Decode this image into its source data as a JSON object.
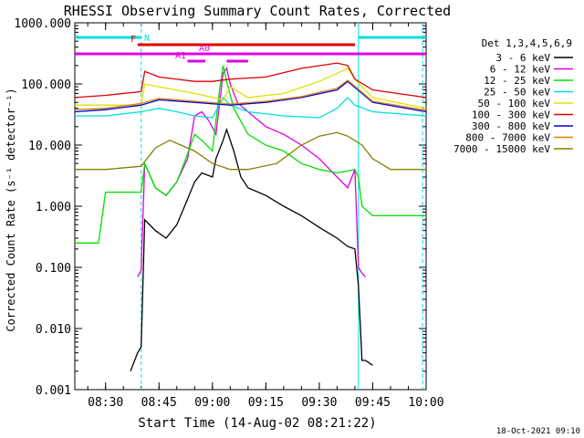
{
  "chart_data": {
    "type": "line",
    "title": "RHESSI Observing Summary Count Rates, Corrected",
    "xlabel": "Start Time (14-Aug-02 08:21:22)",
    "ylabel": "Corrected Count Rate (s⁻¹ detector⁻¹)",
    "y_scale": "log",
    "ylim": [
      0.001,
      1000
    ],
    "xlim": [
      "08:21:22",
      "10:00:00"
    ],
    "x_ticks": [
      "08:30",
      "08:45",
      "09:00",
      "09:15",
      "09:30",
      "09:45",
      "10:00"
    ],
    "y_ticks": [
      "1000.000",
      "100.000",
      "10.000",
      "1.000",
      "0.100",
      "0.010",
      "0.001"
    ],
    "grid": false,
    "legend_title": "Det 1,3,4,5,6,9",
    "legend_position": "right",
    "footer": "18-Oct-2021 09:10",
    "flags": [
      {
        "label": "N",
        "color": "#00e0e0",
        "segments": [
          [
            "08:21:22",
            "08:40"
          ],
          [
            "09:41",
            "10:00"
          ]
        ]
      },
      {
        "label": "F",
        "color": "#e00000",
        "segments": [
          [
            "08:39",
            "09:40"
          ]
        ]
      },
      {
        "label": "A0",
        "color": "#e000e0",
        "segments": [
          [
            "08:21:22",
            "10:00"
          ]
        ]
      },
      {
        "label": "A1",
        "color": "#e000e0",
        "segments": [
          [
            "08:53",
            "08:58"
          ],
          [
            "09:04",
            "09:10"
          ]
        ]
      }
    ],
    "vlines": [
      {
        "time": "08:40",
        "color": "#00e0e0",
        "style": "dashed"
      },
      {
        "time": "09:41",
        "color": "#00e0e0",
        "style": "solid"
      },
      {
        "time": "09:59",
        "color": "#00e0e0",
        "style": "dashed"
      }
    ],
    "series": [
      {
        "name": "3 - 6 keV",
        "color": "#000000",
        "x": [
          "08:37",
          "08:39",
          "08:40",
          "08:41",
          "08:44",
          "08:47",
          "08:50",
          "08:53",
          "08:55",
          "08:57",
          "09:00",
          "09:01",
          "09:03",
          "09:04",
          "09:06",
          "09:08",
          "09:10",
          "09:15",
          "09:20",
          "09:25",
          "09:30",
          "09:35",
          "09:38",
          "09:40",
          "09:41",
          "09:42",
          "09:43",
          "09:45"
        ],
        "y": [
          0.002,
          0.004,
          0.005,
          0.6,
          0.4,
          0.3,
          0.5,
          1.3,
          2.5,
          3.5,
          3,
          6,
          12,
          18,
          8,
          3,
          2,
          1.5,
          1,
          0.7,
          0.45,
          0.3,
          0.22,
          0.2,
          0.05,
          0.003,
          0.003,
          0.0025
        ]
      },
      {
        "name": "6 - 12 keV",
        "color": "#e000e0",
        "x": [
          "08:39",
          "08:40",
          "08:41",
          "08:44",
          "08:47",
          "08:50",
          "08:53",
          "08:55",
          "08:57",
          "08:59",
          "09:01",
          "09:03",
          "09:04",
          "09:05",
          "09:07",
          "09:10",
          "09:15",
          "09:20",
          "09:25",
          "09:30",
          "09:35",
          "09:38",
          "09:40",
          "09:41",
          "09:42",
          "09:43"
        ],
        "y": [
          0.07,
          0.09,
          5,
          2,
          1.5,
          2.5,
          6,
          30,
          35,
          25,
          15,
          150,
          180,
          100,
          50,
          35,
          20,
          15,
          10,
          6,
          3,
          2,
          4,
          0.1,
          0.08,
          0.07
        ]
      },
      {
        "name": "12 - 25 keV",
        "color": "#00e000",
        "x": [
          "08:21:22",
          "08:28",
          "08:30",
          "08:40",
          "08:41",
          "08:44",
          "08:47",
          "08:50",
          "08:52",
          "08:55",
          "08:57",
          "09:00",
          "09:02",
          "09:03",
          "09:04",
          "09:06",
          "09:10",
          "09:15",
          "09:20",
          "09:25",
          "09:30",
          "09:35",
          "09:40",
          "09:41",
          "09:42",
          "09:45",
          "09:50",
          "10:00"
        ],
        "y": [
          0.25,
          0.25,
          1.7,
          1.7,
          5,
          2,
          1.5,
          2.5,
          5,
          15,
          12,
          8,
          80,
          200,
          110,
          40,
          15,
          10,
          8,
          5,
          4,
          3.5,
          4,
          3,
          1,
          0.7,
          0.7,
          0.7
        ]
      },
      {
        "name": "25 - 50 keV",
        "color": "#00e0e0",
        "x": [
          "08:21:22",
          "08:30",
          "08:40",
          "08:45",
          "08:50",
          "08:55",
          "09:00",
          "09:03",
          "09:05",
          "09:10",
          "09:20",
          "09:30",
          "09:35",
          "09:38",
          "09:40",
          "09:45",
          "10:00"
        ],
        "y": [
          30,
          30,
          35,
          40,
          35,
          30,
          28,
          60,
          45,
          35,
          30,
          28,
          40,
          60,
          45,
          35,
          30
        ]
      },
      {
        "name": "50 - 100 keV",
        "color": "#e0e000",
        "x": [
          "08:21:22",
          "08:30",
          "08:40",
          "08:41",
          "08:45",
          "08:55",
          "09:03",
          "09:05",
          "09:10",
          "09:20",
          "09:30",
          "09:38",
          "09:40",
          "09:45",
          "10:00"
        ],
        "y": [
          45,
          45,
          45,
          100,
          90,
          70,
          55,
          90,
          60,
          70,
          110,
          180,
          120,
          60,
          40
        ]
      },
      {
        "name": "100 - 300 keV",
        "color": "#e00000",
        "x": [
          "08:21:22",
          "08:30",
          "08:40",
          "08:41",
          "08:45",
          "08:55",
          "09:00",
          "09:05",
          "09:15",
          "09:25",
          "09:35",
          "09:38",
          "09:40",
          "09:45",
          "10:00"
        ],
        "y": [
          60,
          65,
          75,
          160,
          130,
          110,
          110,
          120,
          130,
          180,
          220,
          200,
          120,
          80,
          60
        ]
      },
      {
        "name": "300 - 800 keV",
        "color": "#0000e0",
        "x": [
          "08:21:22",
          "08:30",
          "08:40",
          "08:45",
          "08:55",
          "09:05",
          "09:15",
          "09:25",
          "09:35",
          "09:38",
          "09:45",
          "10:00"
        ],
        "y": [
          35,
          38,
          45,
          55,
          50,
          45,
          50,
          60,
          80,
          110,
          50,
          35
        ]
      },
      {
        "name": "800 - 7000 keV",
        "color": "#e08000",
        "x": [
          "08:21:22",
          "08:30",
          "08:40",
          "08:45",
          "08:55",
          "09:05",
          "09:15",
          "09:25",
          "09:35",
          "09:38",
          "09:45",
          "10:00"
        ],
        "y": [
          38,
          40,
          48,
          58,
          52,
          47,
          52,
          62,
          85,
          115,
          52,
          37
        ]
      },
      {
        "name": "7000 - 15000 keV",
        "color": "#808000",
        "x": [
          "08:21:22",
          "08:30",
          "08:40",
          "08:44",
          "08:48",
          "08:55",
          "09:00",
          "09:05",
          "09:10",
          "09:18",
          "09:25",
          "09:30",
          "09:35",
          "09:38",
          "09:42",
          "09:45",
          "09:50",
          "10:00"
        ],
        "y": [
          4,
          4,
          4.5,
          9,
          12,
          8,
          5,
          4,
          4,
          5,
          10,
          14,
          16,
          14,
          10,
          6,
          4,
          4
        ]
      }
    ]
  }
}
